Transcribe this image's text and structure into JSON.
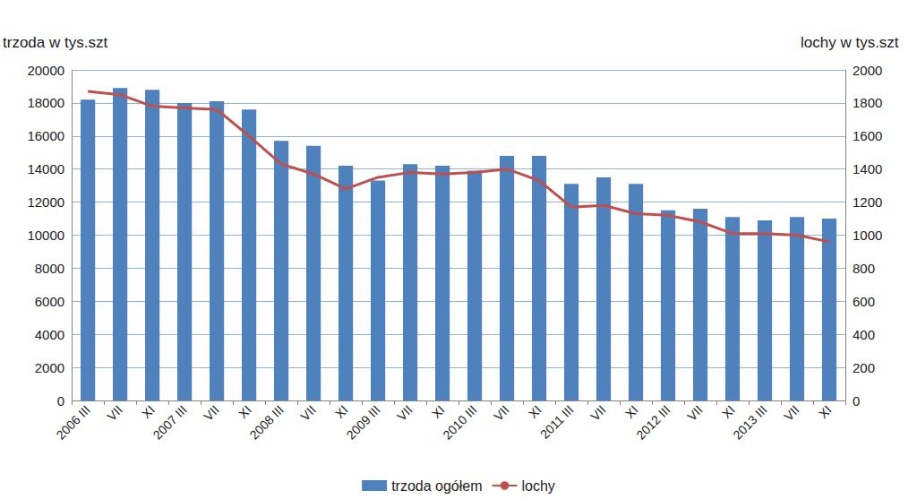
{
  "chart_data": {
    "type": "bar",
    "ylabel": "trzoda w tys.szt",
    "y2label": "lochy w tys.szt",
    "categories": [
      "2006 III",
      "VII",
      "XI",
      "2007 III",
      "VII",
      "XI",
      "2008 III",
      "VII",
      "XI",
      "2009 III",
      "VII",
      "XI",
      "2010 III",
      "VII",
      "XI",
      "2011 III",
      "VII",
      "XI",
      "2012 III",
      "VII",
      "XI",
      "2013 III",
      "VII",
      "XI"
    ],
    "series": [
      {
        "name": "trzoda ogółem",
        "type": "bar",
        "color": "#4f81bd",
        "values": [
          18200,
          18900,
          18800,
          18000,
          18100,
          17600,
          15700,
          15400,
          14200,
          13300,
          14300,
          14200,
          13900,
          14800,
          14800,
          13100,
          13500,
          13100,
          11500,
          11600,
          11100,
          10900,
          11100,
          11000
        ]
      },
      {
        "name": "lochy",
        "type": "line",
        "axis": "y2",
        "color": "#c0504d",
        "values": [
          1870,
          1850,
          1780,
          1770,
          1760,
          1600,
          1430,
          1370,
          1280,
          1350,
          1380,
          1370,
          1380,
          1400,
          1330,
          1170,
          1180,
          1130,
          1120,
          1080,
          1010,
          1010,
          1000,
          960
        ]
      }
    ],
    "ylim": [
      0,
      20000
    ],
    "yticks": [
      0,
      2000,
      4000,
      6000,
      8000,
      10000,
      12000,
      14000,
      16000,
      18000,
      20000
    ],
    "y2lim": [
      0,
      2000
    ],
    "y2ticks": [
      0,
      200,
      400,
      600,
      800,
      1000,
      1200,
      1400,
      1600,
      1800,
      2000
    ],
    "grid": true,
    "legend": "bottom"
  }
}
